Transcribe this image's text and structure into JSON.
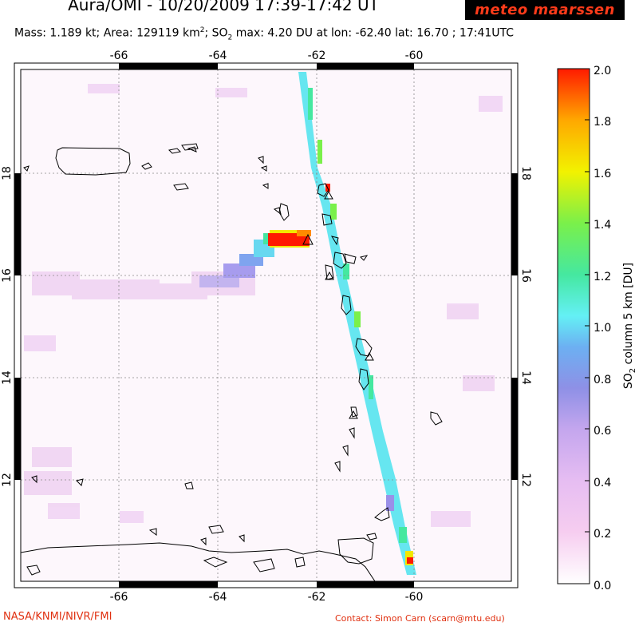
{
  "header": {
    "title": "Aura/OMI - 10/20/2009 17:39-17:42 UT",
    "logo_text": "meteo maarssen",
    "info_part1": "Mass: 1.189 kt; Area: 129119 km",
    "info_sup": "2",
    "info_part2": "; SO",
    "info_sub": "2",
    "info_part3": " max: 4.20 DU at lon: -62.40 lat: 16.70 ; 17:41UTC"
  },
  "map": {
    "lon_ticks": [
      "-66",
      "-64",
      "-62",
      "-60"
    ],
    "lat_ticks": [
      "18",
      "16",
      "14",
      "12"
    ],
    "colors": {
      "frame": "#000000",
      "grid": "#888888",
      "coast": "#000000",
      "plume_high": "#ff2200",
      "plume_mid": "#ffcc00",
      "plume_green": "#33dd33",
      "plume_cyan": "#66ddff",
      "plume_blue": "#8899ee",
      "haze": "#f2d8f4"
    }
  },
  "colorbar": {
    "tick_labels": [
      "2.0",
      "1.8",
      "1.6",
      "1.4",
      "1.2",
      "1.0",
      "0.8",
      "0.6",
      "0.4",
      "0.2",
      "0.0"
    ],
    "label_pre": "SO",
    "label_sub": "2",
    "label_post": " column 5 km [DU]",
    "stops": [
      "#ffffff",
      "#f6cdf0",
      "#d7b0f0",
      "#9a90e8",
      "#6fa8f0",
      "#64f0f5",
      "#45e8a0",
      "#7af04a",
      "#f2f200",
      "#ffa800",
      "#ff1a00"
    ]
  },
  "footer": {
    "left": "NASA/KNMI/NIVR/FMI",
    "right": "Contact: Simon Carn (scarn@mtu.edu)"
  }
}
